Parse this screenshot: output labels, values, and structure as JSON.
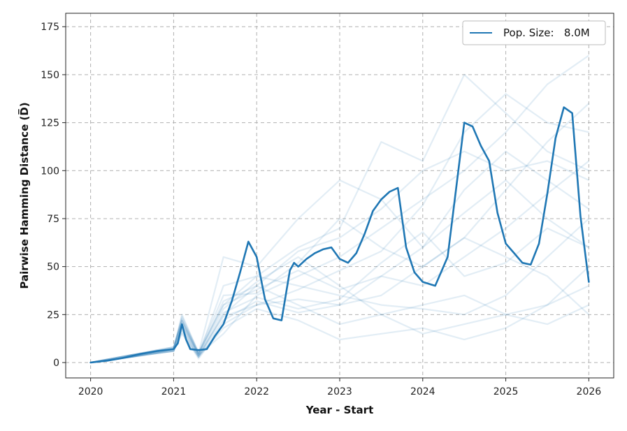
{
  "chart_data": {
    "type": "line",
    "xlabel": "Year - Start",
    "ylabel": "Pairwise Hamming Distance (D̅)",
    "xlim": [
      2019.7,
      2026.3
    ],
    "ylim": [
      -8,
      182
    ],
    "xticks": [
      2020,
      2021,
      2022,
      2023,
      2024,
      2025,
      2026
    ],
    "yticks": [
      0,
      25,
      50,
      75,
      100,
      125,
      150,
      175
    ],
    "grid": true,
    "legend": {
      "placement": "top-right",
      "entries": [
        {
          "label": "Pop. Size:   8.0M"
        }
      ]
    },
    "colors": {
      "main": "#1f77b4",
      "ensemble": "#1f77b4"
    },
    "series": [
      {
        "name": "Pop. Size:   8.0M",
        "role": "highlighted run",
        "x": [
          2020.0,
          2020.2,
          2020.4,
          2020.6,
          2020.8,
          2021.0,
          2021.05,
          2021.1,
          2021.15,
          2021.2,
          2021.3,
          2021.4,
          2021.5,
          2021.6,
          2021.7,
          2021.8,
          2021.9,
          2022.0,
          2022.1,
          2022.2,
          2022.3,
          2022.4,
          2022.45,
          2022.5,
          2022.6,
          2022.7,
          2022.8,
          2022.9,
          2023.0,
          2023.1,
          2023.2,
          2023.3,
          2023.4,
          2023.5,
          2023.6,
          2023.7,
          2023.8,
          2023.9,
          2024.0,
          2024.15,
          2024.3,
          2024.4,
          2024.5,
          2024.6,
          2024.7,
          2024.8,
          2024.9,
          2025.0,
          2025.1,
          2025.2,
          2025.3,
          2025.4,
          2025.5,
          2025.6,
          2025.7,
          2025.8,
          2025.9,
          2026.0
        ],
        "y": [
          0,
          1,
          2.5,
          4.5,
          6,
          7,
          10,
          20,
          12,
          7,
          6.5,
          7,
          14,
          20,
          32,
          47,
          63,
          55,
          33,
          23,
          22,
          48,
          52,
          50,
          54,
          57,
          59,
          60,
          54,
          52,
          57,
          67,
          79,
          85,
          89,
          91,
          60,
          47,
          42,
          40,
          55,
          90,
          125,
          123,
          113,
          105,
          78,
          62,
          57,
          52,
          51,
          62,
          88,
          117,
          133,
          130,
          76,
          42
        ]
      }
    ],
    "ensemble": {
      "description": "faint background runs",
      "series": [
        {
          "x": [
            2020.0,
            2020.5,
            2021.0,
            2021.1,
            2021.3,
            2021.6,
            2022.0,
            2022.5,
            2023.0,
            2023.5,
            2024.0,
            2024.5,
            2025.0,
            2025.5,
            2026.0
          ],
          "y": [
            0,
            4,
            8,
            22,
            4,
            15,
            35,
            45,
            55,
            70,
            85,
            100,
            120,
            145,
            160
          ]
        },
        {
          "x": [
            2020.0,
            2020.5,
            2021.0,
            2021.1,
            2021.3,
            2021.6,
            2022.0,
            2022.5,
            2023.0,
            2023.5,
            2024.0,
            2024.5,
            2025.0,
            2025.5,
            2026.0
          ],
          "y": [
            0,
            3,
            6,
            18,
            3,
            25,
            40,
            30,
            20,
            25,
            15,
            20,
            25,
            30,
            40
          ]
        },
        {
          "x": [
            2020.0,
            2020.5,
            2021.0,
            2021.1,
            2021.3,
            2021.6,
            2022.0,
            2022.5,
            2023.0,
            2023.5,
            2024.0,
            2024.5,
            2025.0,
            2025.5,
            2026.0
          ],
          "y": [
            0,
            3,
            7,
            25,
            5,
            55,
            50,
            75,
            95,
            85,
            60,
            90,
            110,
            95,
            80
          ]
        },
        {
          "x": [
            2020.0,
            2020.5,
            2021.0,
            2021.1,
            2021.3,
            2021.6,
            2022.0,
            2022.5,
            2023.0,
            2023.5,
            2024.0,
            2024.5,
            2025.0,
            2025.5,
            2026.0
          ],
          "y": [
            0,
            4,
            6,
            15,
            3,
            18,
            28,
            22,
            12,
            15,
            18,
            12,
            18,
            30,
            50
          ]
        },
        {
          "x": [
            2020.0,
            2020.5,
            2021.0,
            2021.1,
            2021.3,
            2021.6,
            2022.0,
            2022.5,
            2023.0,
            2023.5,
            2024.0,
            2024.5,
            2025.0,
            2025.5,
            2026.0
          ],
          "y": [
            0,
            3,
            7,
            20,
            4,
            40,
            45,
            60,
            70,
            115,
            105,
            150,
            130,
            110,
            100
          ]
        },
        {
          "x": [
            2020.0,
            2020.5,
            2021.0,
            2021.1,
            2021.3,
            2021.6,
            2022.0,
            2022.5,
            2023.0,
            2023.5,
            2024.0,
            2024.5,
            2025.0,
            2025.5,
            2026.0
          ],
          "y": [
            0,
            4,
            8,
            23,
            5,
            30,
            38,
            48,
            38,
            45,
            60,
            78,
            95,
            75,
            60
          ]
        },
        {
          "x": [
            2020.0,
            2020.5,
            2021.0,
            2021.1,
            2021.3,
            2021.6,
            2022.0,
            2022.5,
            2023.0,
            2023.5,
            2024.0,
            2024.5,
            2025.0,
            2025.5,
            2026.0
          ],
          "y": [
            0,
            3,
            6,
            17,
            3,
            22,
            32,
            26,
            30,
            45,
            40,
            55,
            70,
            88,
            105
          ]
        },
        {
          "x": [
            2020.0,
            2020.5,
            2021.0,
            2021.1,
            2021.3,
            2021.6,
            2022.0,
            2022.5,
            2023.0,
            2023.5,
            2024.0,
            2024.5,
            2025.0,
            2025.5,
            2026.0
          ],
          "y": [
            0,
            3,
            7,
            21,
            4,
            28,
            42,
            55,
            40,
            25,
            30,
            35,
            25,
            20,
            30
          ]
        },
        {
          "x": [
            2020.0,
            2020.5,
            2021.0,
            2021.1,
            2021.3,
            2021.6,
            2022.0,
            2022.5,
            2023.0,
            2023.5,
            2024.0,
            2024.5,
            2025.0,
            2025.5,
            2026.0
          ],
          "y": [
            0,
            4,
            7,
            24,
            5,
            35,
            36,
            52,
            75,
            60,
            50,
            65,
            90,
            115,
            135
          ]
        },
        {
          "x": [
            2020.0,
            2020.5,
            2021.0,
            2021.1,
            2021.3,
            2021.6,
            2022.0,
            2022.5,
            2023.0,
            2023.5,
            2024.0,
            2024.5,
            2025.0,
            2025.5,
            2026.0
          ],
          "y": [
            0,
            3,
            6,
            16,
            2,
            20,
            30,
            33,
            30,
            35,
            50,
            65,
            55,
            45,
            25
          ]
        },
        {
          "x": [
            2020.0,
            2020.5,
            2021.0,
            2021.1,
            2021.3,
            2021.6,
            2022.0,
            2022.5,
            2023.0,
            2023.5,
            2024.0,
            2024.5,
            2025.0,
            2025.5,
            2026.0
          ],
          "y": [
            0,
            4,
            8,
            22,
            4,
            32,
            40,
            58,
            65,
            80,
            100,
            110,
            100,
            105,
            95
          ]
        },
        {
          "x": [
            2020.0,
            2020.5,
            2021.0,
            2021.1,
            2021.3,
            2021.6,
            2022.0,
            2022.5,
            2023.0,
            2023.5,
            2024.0,
            2024.5,
            2025.0,
            2025.5,
            2026.0
          ],
          "y": [
            0,
            3,
            6,
            19,
            3,
            26,
            34,
            28,
            33,
            52,
            68,
            45,
            52,
            70,
            60
          ]
        },
        {
          "x": [
            2020.0,
            2020.5,
            2021.0,
            2021.1,
            2021.3,
            2021.6,
            2022.0,
            2022.5,
            2023.0,
            2023.5,
            2024.0,
            2024.5,
            2025.0,
            2025.5,
            2026.0
          ],
          "y": [
            0,
            3,
            7,
            20,
            4,
            24,
            30,
            38,
            48,
            58,
            82,
            120,
            140,
            125,
            120
          ]
        },
        {
          "x": [
            2020.0,
            2020.5,
            2021.0,
            2021.1,
            2021.3,
            2021.6,
            2022.0,
            2022.5,
            2023.0,
            2023.5,
            2024.0,
            2024.5,
            2025.0,
            2025.5,
            2026.0
          ],
          "y": [
            0,
            4,
            7,
            22,
            5,
            30,
            45,
            40,
            35,
            30,
            28,
            25,
            35,
            55,
            75
          ]
        }
      ]
    }
  }
}
